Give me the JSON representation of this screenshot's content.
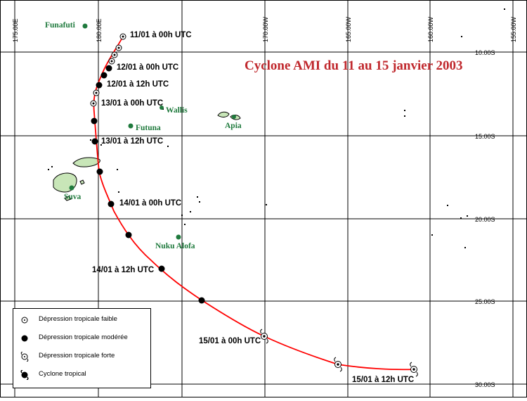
{
  "title": "Cyclone AMI du 11 au 15 janvier 2003",
  "longitudes": [
    "175.00E",
    "180.00E",
    "170.00W",
    "165.00W",
    "160.00W",
    "155.00W"
  ],
  "latitudes": [
    "10.00S",
    "15.00S",
    "20.00S",
    "25.00S",
    "30.00S"
  ],
  "places": {
    "funafuti": "Funafuti",
    "wallis": "Wallis",
    "futuna": "Futuna",
    "apia": "Apia",
    "suva": "Suva",
    "nuku_alofa": "Nuku Alofa"
  },
  "time_labels": {
    "t11_00": "11/01 à 00h UTC",
    "t12_00": "12/01 à 00h UTC",
    "t12_12": "12/01 à 12h UTC",
    "t13_00": "13/01 à 00h UTC",
    "t13_12": "13/01 à 12h UTC",
    "t14_00": "14/01 à 00h UTC",
    "t14_12": "14/01 à 12h UTC",
    "t15_00": "15/01 à 00h UTC",
    "t15_12": "15/01 à 12h UTC"
  },
  "legend": {
    "faible": "Dépression tropicale faible",
    "moderee": "Dépression tropicale modérée",
    "forte": "Dépression tropicale forte",
    "cyclone": "Cyclone tropical"
  },
  "colors": {
    "track": "#ff0000",
    "title": "#c0282d",
    "place": "#1f7a3d",
    "grid": "#000000",
    "land": "#c8e6b8"
  }
}
